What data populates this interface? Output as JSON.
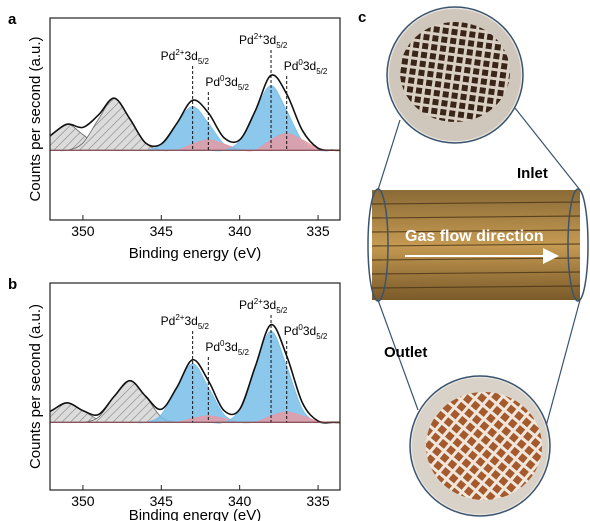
{
  "chart_data": [
    {
      "type": "line",
      "panel_label": "a",
      "xlabel": "Binding energy (eV)",
      "ylabel": "Counts per second (a.u.)",
      "xlim": [
        352.1,
        333.6
      ],
      "xticks": [
        350,
        345,
        340,
        335
      ],
      "ylim": [
        -67,
        127
      ],
      "x": [
        354,
        353,
        352,
        351,
        350,
        349,
        348,
        347,
        346,
        345,
        344,
        343,
        342,
        341,
        340,
        339,
        338,
        337,
        336,
        335,
        334,
        333
      ],
      "series": [
        {
          "color": "#9a9a9a",
          "hatch": true,
          "values": [
            0,
            4,
            15,
            25,
            15,
            4,
            0,
            0,
            0,
            0,
            0,
            0,
            0,
            0,
            0,
            0,
            0,
            0,
            0,
            0,
            0,
            0
          ]
        },
        {
          "color": "#9a9a9a",
          "hatch": true,
          "values": [
            0,
            0,
            0,
            0,
            7,
            30,
            50,
            30,
            7,
            0,
            0,
            0,
            0,
            0,
            0,
            0,
            0,
            0,
            0,
            0,
            0,
            0
          ]
        },
        {
          "color": "#78bde9",
          "hatch": false,
          "values": [
            0,
            0,
            0,
            0,
            0,
            0,
            0,
            0,
            0,
            6,
            26,
            42,
            26,
            6,
            0,
            0,
            0,
            0,
            0,
            0,
            0,
            0
          ]
        },
        {
          "color": "#e49aa6",
          "hatch": false,
          "values": [
            0,
            0,
            0,
            0,
            0,
            0,
            0,
            0,
            0,
            0,
            0,
            6,
            10,
            6,
            1,
            0,
            0,
            0,
            0,
            0,
            0,
            0
          ]
        },
        {
          "color": "#78bde9",
          "hatch": false,
          "values": [
            0,
            0,
            0,
            0,
            0,
            0,
            0,
            0,
            0,
            0,
            0,
            0,
            0,
            0,
            9,
            38,
            62,
            38,
            9,
            0,
            0,
            0
          ]
        },
        {
          "color": "#e49aa6",
          "hatch": false,
          "values": [
            0,
            0,
            0,
            0,
            0,
            0,
            0,
            0,
            0,
            0,
            0,
            0,
            0,
            0,
            0,
            0,
            10,
            16,
            10,
            2,
            0,
            0
          ]
        },
        {
          "color": "#111111",
          "envelope": true,
          "values": [
            0,
            4,
            15,
            25,
            22,
            34,
            50,
            30,
            7,
            6,
            26,
            48,
            36,
            12,
            10,
            38,
            72,
            54,
            19,
            2,
            0,
            0
          ]
        }
      ],
      "annotations": [
        {
          "x": 343,
          "base": "Pd",
          "sup": "2+",
          "mid": "3d",
          "sub": "5/2"
        },
        {
          "x": 342,
          "base": "Pd",
          "sup": "0",
          "mid": "3d",
          "sub": "5/2"
        },
        {
          "x": 338,
          "base": "Pd",
          "sup": "2+",
          "mid": "3d",
          "sub": "5/2"
        },
        {
          "x": 337,
          "base": "Pd",
          "sup": "0",
          "mid": "3d",
          "sub": "5/2"
        }
      ]
    },
    {
      "type": "line",
      "panel_label": "b",
      "xlabel": "Binding energy (eV)",
      "ylabel": "Counts per second (a.u.)",
      "xlim": [
        352.1,
        333.6
      ],
      "xticks": [
        350,
        345,
        340,
        335
      ],
      "ylim": [
        -52,
        107
      ],
      "x": [
        354,
        353,
        352,
        351,
        350,
        349,
        348,
        347,
        346,
        345,
        344,
        343,
        342,
        341,
        340,
        339,
        338,
        337,
        336,
        335,
        334,
        333
      ],
      "series": [
        {
          "color": "#9a9a9a",
          "hatch": true,
          "values": [
            0,
            2,
            9,
            15,
            9,
            2,
            0,
            0,
            0,
            0,
            0,
            0,
            0,
            0,
            0,
            0,
            0,
            0,
            0,
            0,
            0,
            0
          ]
        },
        {
          "color": "#9a9a9a",
          "hatch": true,
          "values": [
            0,
            0,
            0,
            0,
            0,
            4,
            20,
            32,
            20,
            4,
            0,
            0,
            0,
            0,
            0,
            0,
            0,
            0,
            0,
            0,
            0,
            0
          ]
        },
        {
          "color": "#78bde9",
          "hatch": false,
          "values": [
            0,
            0,
            0,
            0,
            0,
            0,
            0,
            0,
            0,
            6,
            27,
            45,
            27,
            6,
            0,
            0,
            0,
            0,
            0,
            0,
            0,
            0
          ]
        },
        {
          "color": "#e49aa6",
          "hatch": false,
          "values": [
            0,
            0,
            0,
            0,
            0,
            0,
            0,
            0,
            0,
            0,
            0,
            3,
            5,
            3,
            0,
            0,
            0,
            0,
            0,
            0,
            0,
            0
          ]
        },
        {
          "color": "#78bde9",
          "hatch": false,
          "values": [
            0,
            0,
            0,
            0,
            0,
            0,
            0,
            0,
            0,
            0,
            0,
            0,
            0,
            0,
            10,
            43,
            70,
            43,
            10,
            0,
            0,
            0
          ]
        },
        {
          "color": "#e49aa6",
          "hatch": false,
          "values": [
            0,
            0,
            0,
            0,
            0,
            0,
            0,
            0,
            0,
            0,
            0,
            0,
            0,
            0,
            0,
            0,
            5,
            8,
            5,
            1,
            0,
            0
          ]
        },
        {
          "color": "#111111",
          "envelope": true,
          "values": [
            0,
            2,
            9,
            15,
            9,
            6,
            20,
            32,
            20,
            10,
            27,
            48,
            32,
            9,
            10,
            43,
            75,
            51,
            15,
            1,
            0,
            0
          ]
        }
      ],
      "annotations": [
        {
          "x": 343,
          "base": "Pd",
          "sup": "2+",
          "mid": "3d",
          "sub": "5/2"
        },
        {
          "x": 342,
          "base": "Pd",
          "sup": "0",
          "mid": "3d",
          "sub": "5/2"
        },
        {
          "x": 338,
          "base": "Pd",
          "sup": "2+",
          "mid": "3d",
          "sub": "5/2"
        },
        {
          "x": 337,
          "base": "Pd",
          "sup": "0",
          "mid": "3d",
          "sub": "5/2"
        }
      ]
    }
  ],
  "panel_c": {
    "label": "c",
    "inlet": "Inlet",
    "flow": "Gas flow direction",
    "outlet": "Outlet"
  }
}
